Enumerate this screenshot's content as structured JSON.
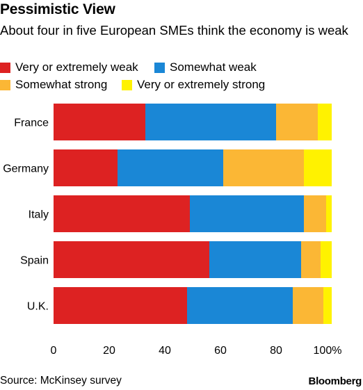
{
  "header": {
    "title": "Pessimistic View",
    "subtitle": "About four in five European SMEs think the economy is weak"
  },
  "legend": [
    {
      "label": "Very or extremely weak",
      "color": "#dd2222"
    },
    {
      "label": "Somewhat weak",
      "color": "#1a87d6"
    },
    {
      "label": "Somewhat strong",
      "color": "#fbb735"
    },
    {
      "label": "Very or extremely strong",
      "color": "#fff200"
    }
  ],
  "chart_data": {
    "type": "bar",
    "orientation": "horizontal",
    "stacked": true,
    "categories": [
      "France",
      "Germany",
      "Italy",
      "Spain",
      "U.K."
    ],
    "series": [
      {
        "name": "Very or extremely weak",
        "color": "#dd2222",
        "values": [
          33,
          23,
          49,
          56,
          48
        ]
      },
      {
        "name": "Somewhat weak",
        "color": "#1a87d6",
        "values": [
          47,
          38,
          41,
          33,
          38
        ]
      },
      {
        "name": "Somewhat strong",
        "color": "#fbb735",
        "values": [
          15,
          29,
          8,
          7,
          11
        ]
      },
      {
        "name": "Very or extremely strong",
        "color": "#fff200",
        "values": [
          5,
          10,
          2,
          4,
          3
        ]
      }
    ],
    "xlim": [
      0,
      100
    ],
    "ticks": [
      "0",
      "20",
      "40",
      "60",
      "80",
      "100%"
    ],
    "grid": false
  },
  "footer": {
    "source": "Source: McKinsey survey",
    "brand": "Bloomberg"
  }
}
